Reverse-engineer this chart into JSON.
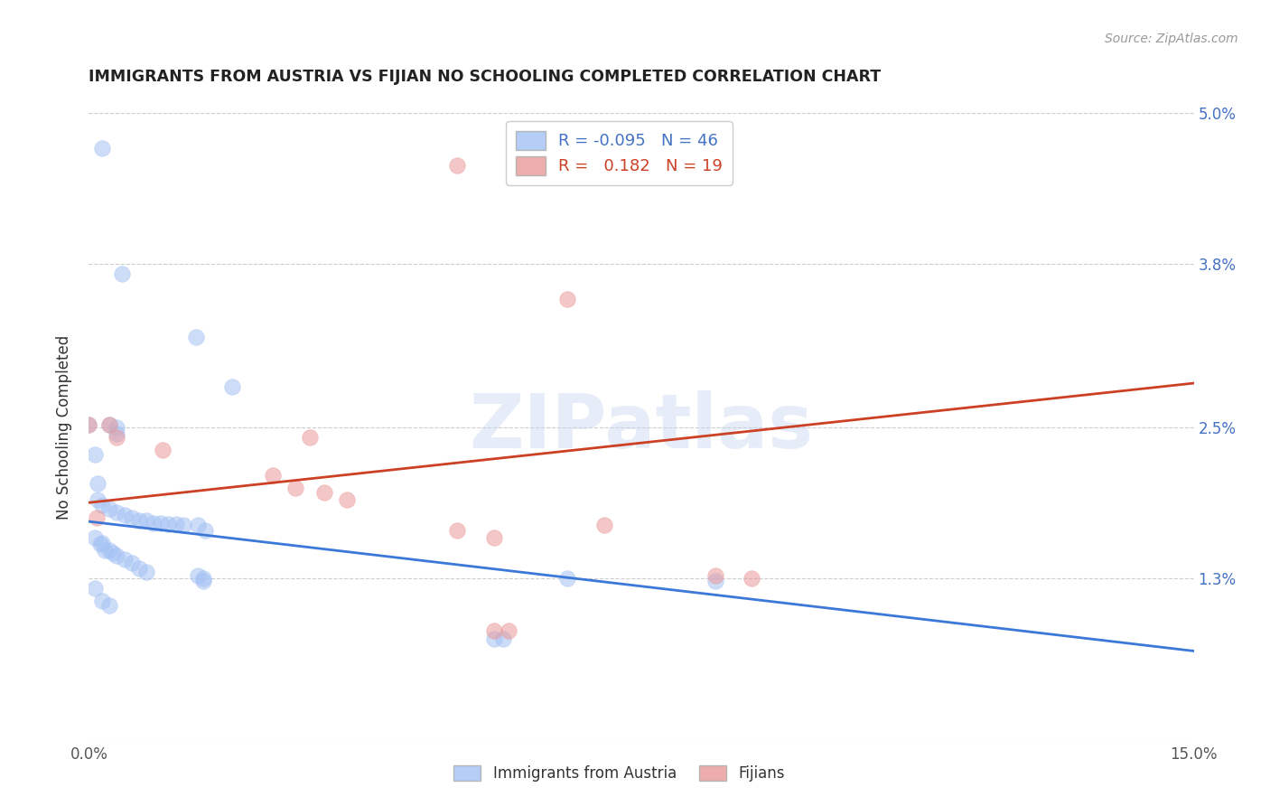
{
  "title": "IMMIGRANTS FROM AUSTRIA VS FIJIAN NO SCHOOLING COMPLETED CORRELATION CHART",
  "source": "Source: ZipAtlas.com",
  "ylabel": "No Schooling Completed",
  "legend_blue_label": "Immigrants from Austria",
  "legend_pink_label": "Fijians",
  "legend_blue_R": "R = -0.095",
  "legend_blue_N": "N = 46",
  "legend_pink_R": "R =   0.182",
  "legend_pink_N": "N = 19",
  "watermark": "ZIPatlas",
  "blue_color": "#a4c2f4",
  "pink_color": "#ea9999",
  "blue_line_color": "#3c78d8",
  "pink_line_color": "#cc4125",
  "xlim": [
    0.0,
    15.0
  ],
  "ylim": [
    0.0,
    5.0
  ],
  "xticks": [
    0.0,
    2.5,
    5.0,
    7.5,
    10.0,
    12.5,
    15.0
  ],
  "xticklabels": [
    "0.0%",
    "",
    "",
    "",
    "",
    "",
    "15.0%"
  ],
  "yticks": [
    0.0,
    1.3,
    2.5,
    3.8,
    5.0
  ],
  "yticklabels": [
    "",
    "1.3%",
    "2.5%",
    "3.8%",
    "5.0%"
  ],
  "blue_line_x": [
    0.0,
    15.0
  ],
  "blue_line_y": [
    1.75,
    0.72
  ],
  "pink_line_x": [
    0.0,
    15.0
  ],
  "pink_line_y": [
    1.9,
    2.85
  ],
  "blue_scatter": [
    [
      0.18,
      4.72
    ],
    [
      0.45,
      3.72
    ],
    [
      1.45,
      3.22
    ],
    [
      1.95,
      2.82
    ],
    [
      0.0,
      2.52
    ],
    [
      0.28,
      2.52
    ],
    [
      0.38,
      2.5
    ],
    [
      0.38,
      2.45
    ],
    [
      0.08,
      2.28
    ],
    [
      0.12,
      2.05
    ],
    [
      0.12,
      1.92
    ],
    [
      0.18,
      1.88
    ],
    [
      0.28,
      1.85
    ],
    [
      0.38,
      1.82
    ],
    [
      0.48,
      1.8
    ],
    [
      0.58,
      1.78
    ],
    [
      0.68,
      1.76
    ],
    [
      0.78,
      1.76
    ],
    [
      0.88,
      1.74
    ],
    [
      0.98,
      1.74
    ],
    [
      1.08,
      1.73
    ],
    [
      1.18,
      1.73
    ],
    [
      1.28,
      1.72
    ],
    [
      1.48,
      1.72
    ],
    [
      1.58,
      1.68
    ],
    [
      0.08,
      1.62
    ],
    [
      0.15,
      1.57
    ],
    [
      0.22,
      1.52
    ],
    [
      0.28,
      1.52
    ],
    [
      0.32,
      1.5
    ],
    [
      0.38,
      1.48
    ],
    [
      0.48,
      1.45
    ],
    [
      0.58,
      1.42
    ],
    [
      0.68,
      1.38
    ],
    [
      0.78,
      1.35
    ],
    [
      1.48,
      1.32
    ],
    [
      1.55,
      1.3
    ],
    [
      6.5,
      1.3
    ],
    [
      8.5,
      1.28
    ],
    [
      0.08,
      1.22
    ],
    [
      0.18,
      1.12
    ],
    [
      0.28,
      1.08
    ],
    [
      1.55,
      1.28
    ],
    [
      5.5,
      0.82
    ],
    [
      5.62,
      0.82
    ],
    [
      0.18,
      1.58
    ]
  ],
  "pink_scatter": [
    [
      5.0,
      4.58
    ],
    [
      6.5,
      3.52
    ],
    [
      0.0,
      2.52
    ],
    [
      0.28,
      2.52
    ],
    [
      0.38,
      2.42
    ],
    [
      1.0,
      2.32
    ],
    [
      3.0,
      2.42
    ],
    [
      2.5,
      2.12
    ],
    [
      2.8,
      2.02
    ],
    [
      3.2,
      1.98
    ],
    [
      3.5,
      1.92
    ],
    [
      5.0,
      1.68
    ],
    [
      5.5,
      1.62
    ],
    [
      7.0,
      1.72
    ],
    [
      8.5,
      1.32
    ],
    [
      9.0,
      1.3
    ],
    [
      5.5,
      0.88
    ],
    [
      5.7,
      0.88
    ],
    [
      0.1,
      1.78
    ]
  ]
}
